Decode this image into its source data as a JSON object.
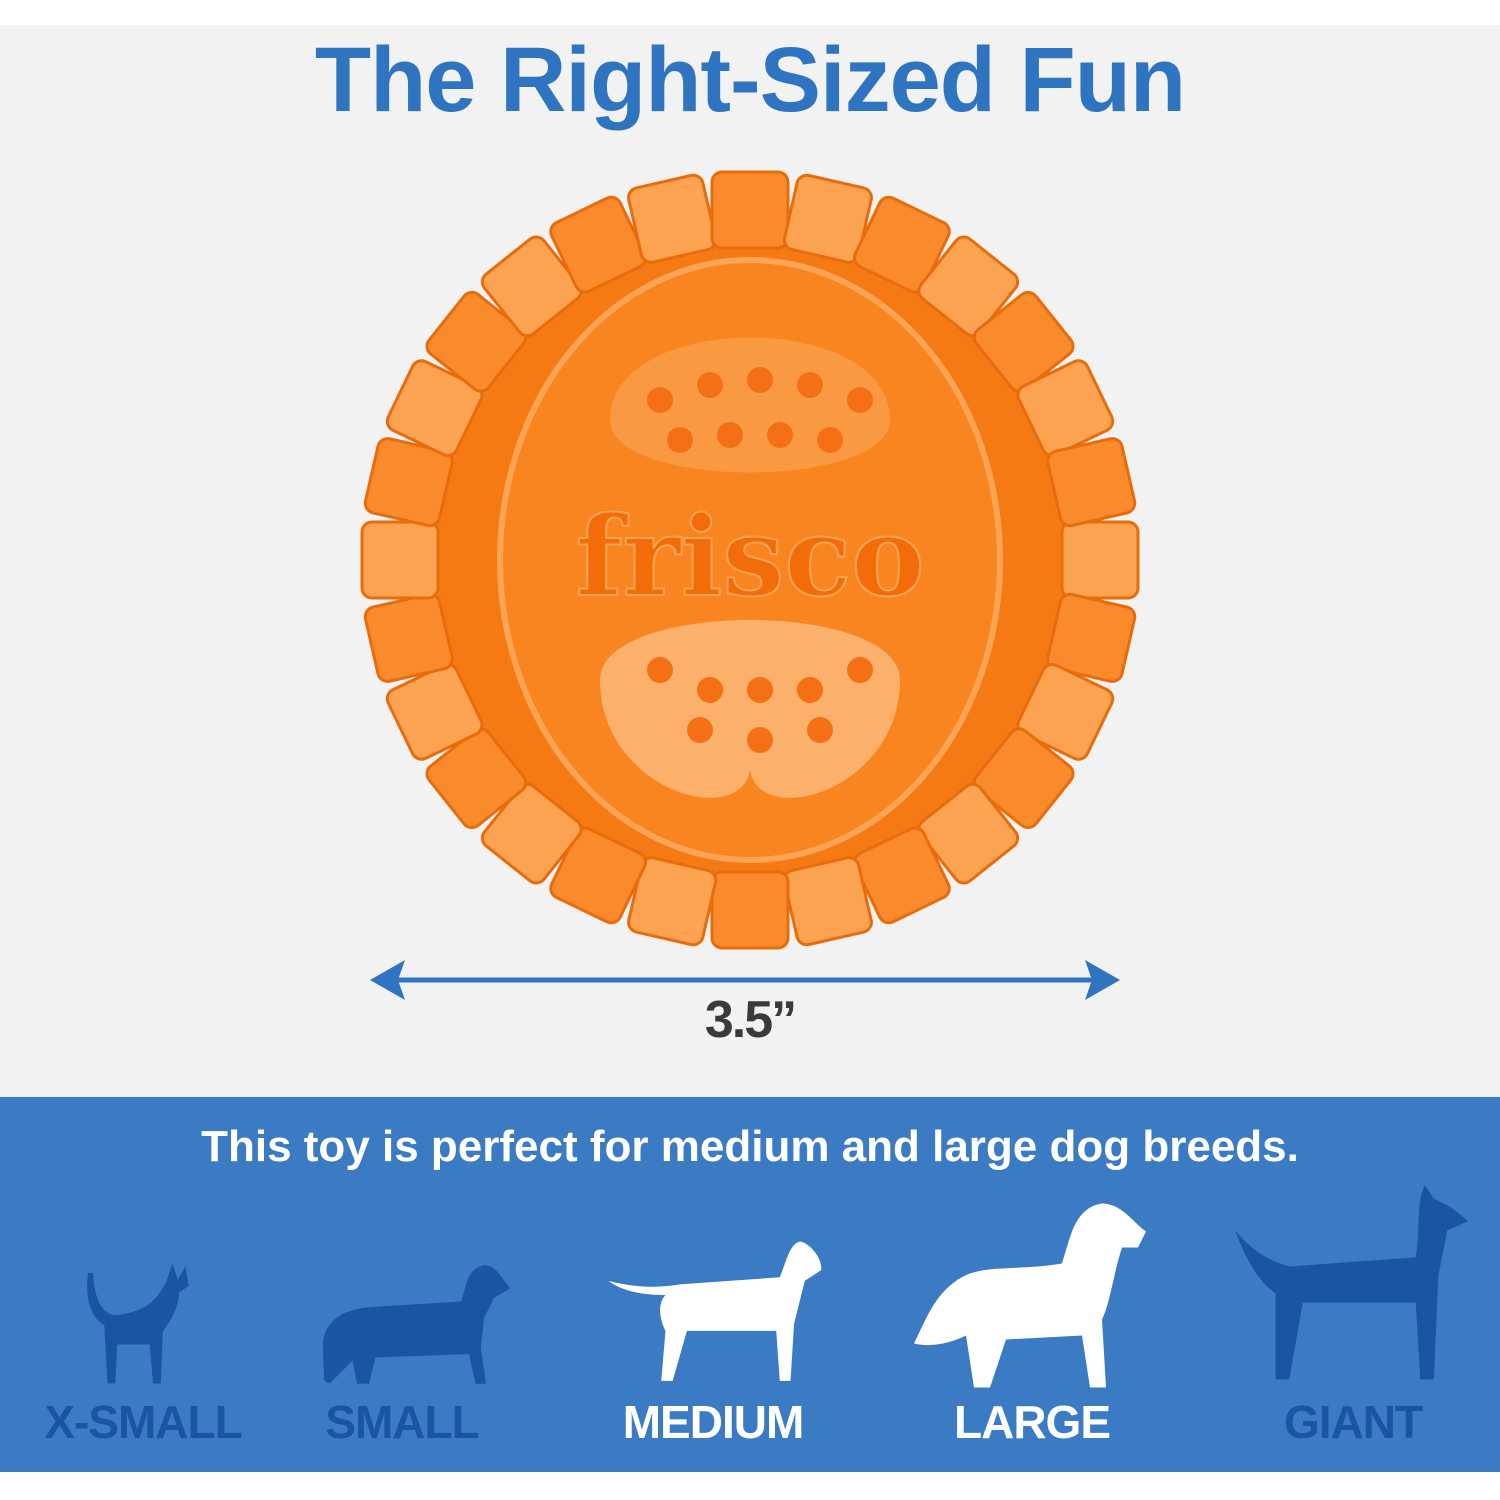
{
  "header": {
    "title": "The Right-Sized Fun"
  },
  "product": {
    "brand_embossed": "frisco",
    "color": "#f7821f",
    "diameter_label": "3.5”",
    "arrow_color": "#2f74c0"
  },
  "fit": {
    "tagline": "This toy is perfect for medium and large dog breeds.",
    "band_color": "#3a7bc4",
    "inactive_color": "#1a55a3",
    "active_color": "#ffffff",
    "sizes": [
      {
        "label": "X-SMALL",
        "suitable": false
      },
      {
        "label": "SMALL",
        "suitable": false
      },
      {
        "label": "MEDIUM",
        "suitable": true
      },
      {
        "label": "LARGE",
        "suitable": true
      },
      {
        "label": "GIANT",
        "suitable": false
      }
    ]
  }
}
